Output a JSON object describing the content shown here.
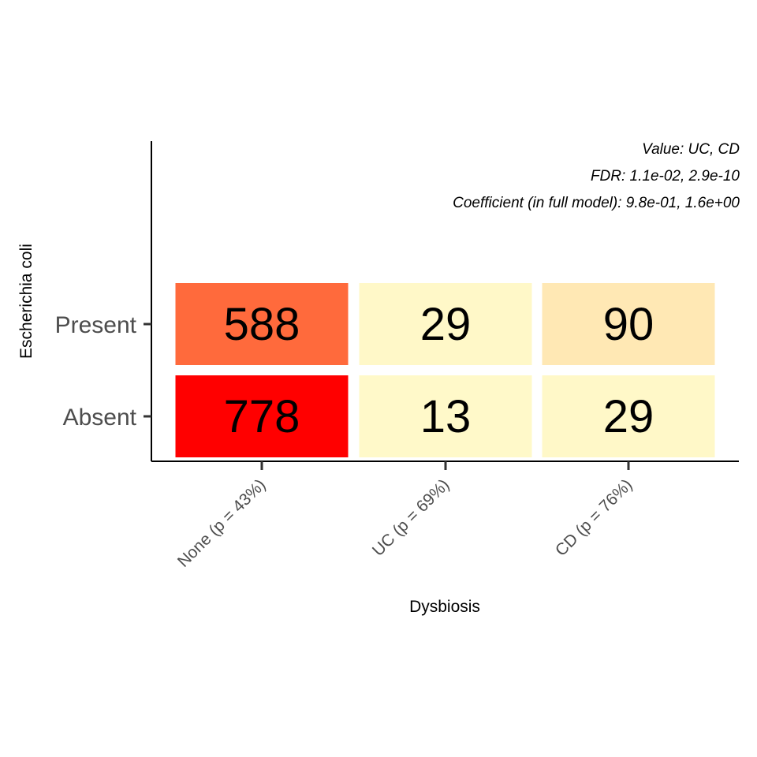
{
  "chart_data": {
    "type": "heatmap",
    "xlabel": "Dysbiosis",
    "ylabel": "Escherichia coli",
    "x_categories": [
      "None (p = 43%)",
      "UC (p = 69%)",
      "CD (p = 76%)"
    ],
    "y_categories": [
      "Absent",
      "Present"
    ],
    "cells": [
      {
        "x": "None (p = 43%)",
        "y": "Present",
        "value": 588,
        "color": "#ff6a3c"
      },
      {
        "x": "UC (p = 69%)",
        "y": "Present",
        "value": 29,
        "color": "#fff8c8"
      },
      {
        "x": "CD (p = 76%)",
        "y": "Present",
        "value": 90,
        "color": "#ffe8b4"
      },
      {
        "x": "None (p = 43%)",
        "y": "Absent",
        "value": 778,
        "color": "#ff0000"
      },
      {
        "x": "UC (p = 69%)",
        "y": "Absent",
        "value": 13,
        "color": "#fff9c9"
      },
      {
        "x": "CD (p = 76%)",
        "y": "Absent",
        "value": 29,
        "color": "#fff8c8"
      }
    ],
    "annotations": [
      "Value: UC, CD",
      "FDR: 1.1e-02, 2.9e-10",
      "Coefficient (in full model): 9.8e-01, 1.6e+00"
    ],
    "grid": false,
    "legend": "none"
  }
}
